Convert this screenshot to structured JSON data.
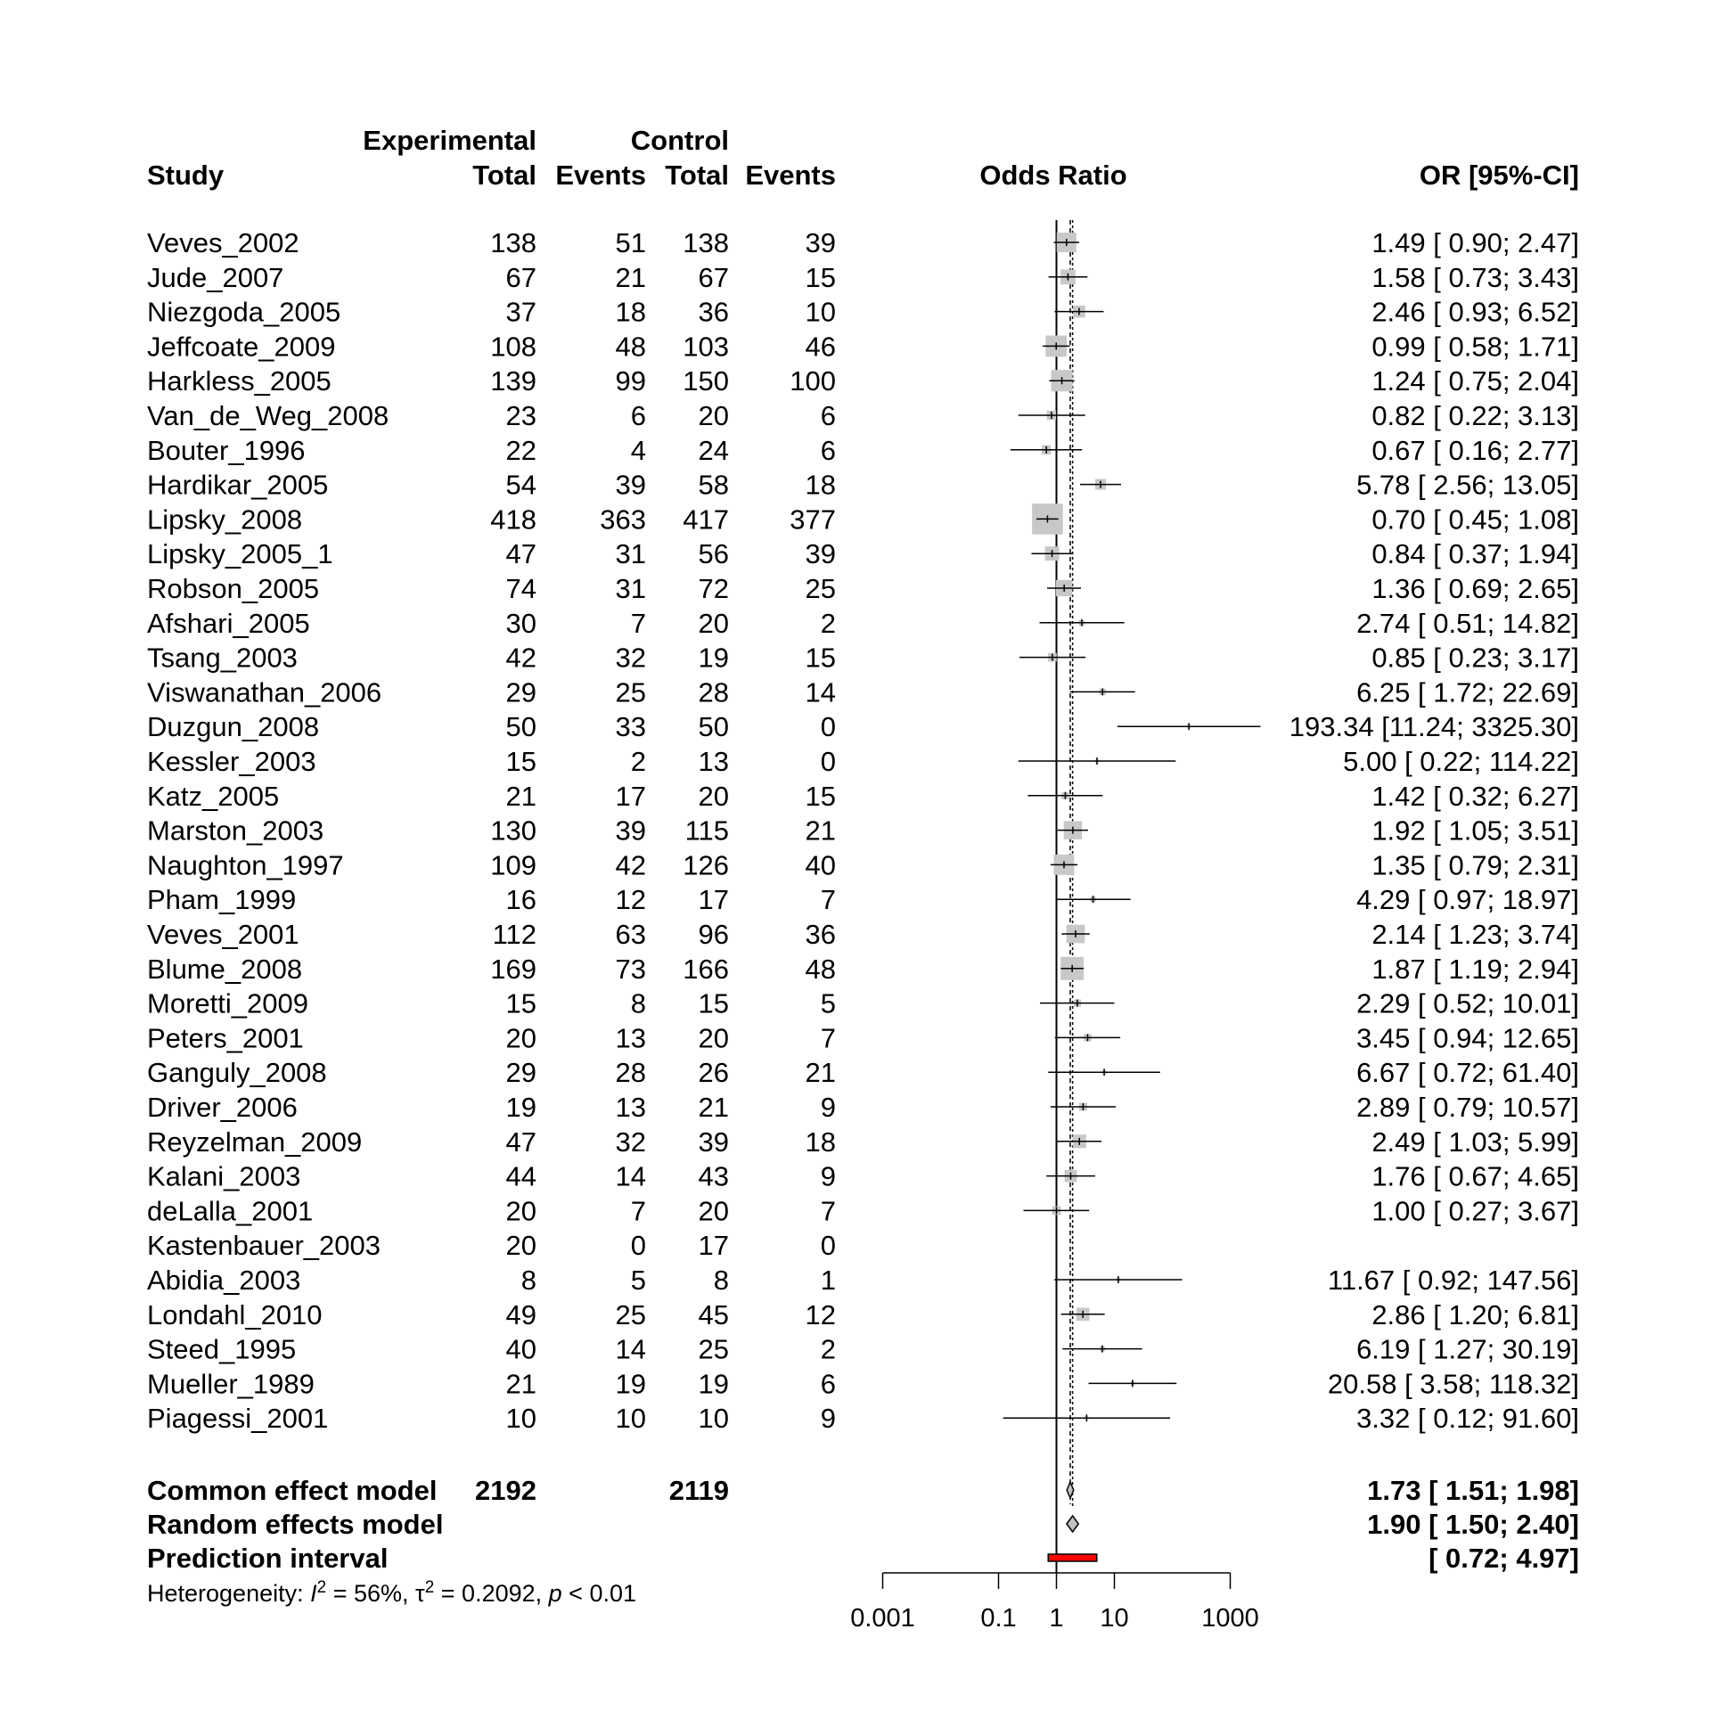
{
  "chart_data": {
    "type": "forest",
    "headers": {
      "experimental": "Experimental",
      "control": "Control",
      "study": "Study",
      "total": "Total",
      "events": "Events",
      "effect": "Odds Ratio",
      "ci": "OR [95%-CI]"
    },
    "x_axis": {
      "scale": "log",
      "ticks": [
        0.001,
        0.1,
        1,
        10,
        1000
      ],
      "tick_labels": [
        "0.001",
        "0.1",
        "1",
        "10",
        "1000"
      ]
    },
    "null_value": 1,
    "studies": [
      {
        "name": "Veves_2002",
        "exp_total": "138",
        "exp_events": "51",
        "ctrl_total": "138",
        "ctrl_events": "39",
        "or": 1.49,
        "lower": 0.9,
        "upper": 2.47,
        "ci_text": "1.49 [ 0.90;    2.47]",
        "weight": 3.6
      },
      {
        "name": "Jude_2007",
        "exp_total": "67",
        "exp_events": "21",
        "ctrl_total": "67",
        "ctrl_events": "15",
        "or": 1.58,
        "lower": 0.73,
        "upper": 3.43,
        "ci_text": "1.58 [ 0.73;    3.43]",
        "weight": 2.1
      },
      {
        "name": "Niezgoda_2005",
        "exp_total": "37",
        "exp_events": "18",
        "ctrl_total": "36",
        "ctrl_events": "10",
        "or": 2.46,
        "lower": 0.93,
        "upper": 6.52,
        "ci_text": "2.46 [ 0.93;    6.52]",
        "weight": 1.4
      },
      {
        "name": "Jeffcoate_2009",
        "exp_total": "108",
        "exp_events": "48",
        "ctrl_total": "103",
        "ctrl_events": "46",
        "or": 0.99,
        "lower": 0.58,
        "upper": 1.71,
        "ci_text": "0.99 [ 0.58;    1.71]",
        "weight": 4.2
      },
      {
        "name": "Harkless_2005",
        "exp_total": "139",
        "exp_events": "99",
        "ctrl_total": "150",
        "ctrl_events": "100",
        "or": 1.24,
        "lower": 0.75,
        "upper": 2.04,
        "ci_text": "1.24 [ 0.75;    2.04]",
        "weight": 4.3
      },
      {
        "name": "Van_de_Weg_2008",
        "exp_total": "23",
        "exp_events": "6",
        "ctrl_total": "20",
        "ctrl_events": "6",
        "or": 0.82,
        "lower": 0.22,
        "upper": 3.13,
        "ci_text": "0.82 [ 0.22;    3.13]",
        "weight": 0.8
      },
      {
        "name": "Bouter_1996",
        "exp_total": "22",
        "exp_events": "4",
        "ctrl_total": "24",
        "ctrl_events": "6",
        "or": 0.67,
        "lower": 0.16,
        "upper": 2.77,
        "ci_text": "0.67 [ 0.16;    2.77]",
        "weight": 0.8
      },
      {
        "name": "Hardikar_2005",
        "exp_total": "54",
        "exp_events": "39",
        "ctrl_total": "58",
        "ctrl_events": "18",
        "or": 5.78,
        "lower": 2.56,
        "upper": 13.05,
        "ci_text": "5.78 [ 2.56;   13.05]",
        "weight": 1.1
      },
      {
        "name": "Lipsky_2008",
        "exp_total": "418",
        "exp_events": "363",
        "ctrl_total": "417",
        "ctrl_events": "377",
        "or": 0.7,
        "lower": 0.45,
        "upper": 1.08,
        "ci_text": "0.70 [ 0.45;    1.08]",
        "weight": 8.9
      },
      {
        "name": "Lipsky_2005_1",
        "exp_total": "47",
        "exp_events": "31",
        "ctrl_total": "56",
        "ctrl_events": "39",
        "or": 0.84,
        "lower": 0.37,
        "upper": 1.94,
        "ci_text": "0.84 [ 0.37;    1.94]",
        "weight": 1.9
      },
      {
        "name": "Robson_2005",
        "exp_total": "74",
        "exp_events": "31",
        "ctrl_total": "72",
        "ctrl_events": "25",
        "or": 1.36,
        "lower": 0.69,
        "upper": 2.65,
        "ci_text": "1.36 [ 0.69;    2.65]",
        "weight": 2.5
      },
      {
        "name": "Afshari_2005",
        "exp_total": "30",
        "exp_events": "7",
        "ctrl_total": "20",
        "ctrl_events": "2",
        "or": 2.74,
        "lower": 0.51,
        "upper": 14.82,
        "ci_text": "2.74 [ 0.51;   14.82]",
        "weight": 0.3
      },
      {
        "name": "Tsang_2003",
        "exp_total": "42",
        "exp_events": "32",
        "ctrl_total": "19",
        "ctrl_events": "15",
        "or": 0.85,
        "lower": 0.23,
        "upper": 3.17,
        "ci_text": "0.85 [ 0.23;    3.17]",
        "weight": 0.7
      },
      {
        "name": "Viswanathan_2006",
        "exp_total": "29",
        "exp_events": "25",
        "ctrl_total": "28",
        "ctrl_events": "14",
        "or": 6.25,
        "lower": 1.72,
        "upper": 22.69,
        "ci_text": "6.25 [ 1.72;   22.69]",
        "weight": 0.4
      },
      {
        "name": "Duzgun_2008",
        "exp_total": "50",
        "exp_events": "33",
        "ctrl_total": "50",
        "ctrl_events": "0",
        "or": 193.34,
        "lower": 11.24,
        "upper": 3325.3,
        "ci_text": "193.34 [11.24; 3325.30]",
        "weight": 0.05
      },
      {
        "name": "Kessler_2003",
        "exp_total": "15",
        "exp_events": "2",
        "ctrl_total": "13",
        "ctrl_events": "0",
        "or": 5.0,
        "lower": 0.22,
        "upper": 114.22,
        "ci_text": "5.00 [ 0.22;  114.22]",
        "weight": 0.1
      },
      {
        "name": "Katz_2005",
        "exp_total": "21",
        "exp_events": "17",
        "ctrl_total": "20",
        "ctrl_events": "15",
        "or": 1.42,
        "lower": 0.32,
        "upper": 6.27,
        "ci_text": "1.42 [ 0.32;    6.27]",
        "weight": 0.5
      },
      {
        "name": "Marston_2003",
        "exp_total": "130",
        "exp_events": "39",
        "ctrl_total": "115",
        "ctrl_events": "21",
        "or": 1.92,
        "lower": 1.05,
        "upper": 3.51,
        "ci_text": "1.92 [ 1.05;    3.51]",
        "weight": 3.1
      },
      {
        "name": "Naughton_1997",
        "exp_total": "109",
        "exp_events": "42",
        "ctrl_total": "126",
        "ctrl_events": "40",
        "or": 1.35,
        "lower": 0.79,
        "upper": 2.31,
        "ci_text": "1.35 [ 0.79;    2.31]",
        "weight": 3.9
      },
      {
        "name": "Pham_1999",
        "exp_total": "16",
        "exp_events": "12",
        "ctrl_total": "17",
        "ctrl_events": "7",
        "or": 4.29,
        "lower": 0.97,
        "upper": 18.97,
        "ci_text": "4.29 [ 0.97;   18.97]",
        "weight": 0.3
      },
      {
        "name": "Veves_2001",
        "exp_total": "112",
        "exp_events": "63",
        "ctrl_total": "96",
        "ctrl_events": "36",
        "or": 2.14,
        "lower": 1.23,
        "upper": 3.74,
        "ci_text": "2.14 [ 1.23;    3.74]",
        "weight": 3.2
      },
      {
        "name": "Blume_2008",
        "exp_total": "169",
        "exp_events": "73",
        "ctrl_total": "166",
        "ctrl_events": "48",
        "or": 1.87,
        "lower": 1.19,
        "upper": 2.94,
        "ci_text": "1.87 [ 1.19;    2.94]",
        "weight": 5.0
      },
      {
        "name": "Moretti_2009",
        "exp_total": "15",
        "exp_events": "8",
        "ctrl_total": "15",
        "ctrl_events": "5",
        "or": 2.29,
        "lower": 0.52,
        "upper": 10.01,
        "ci_text": "2.29 [ 0.52;   10.01]",
        "weight": 0.5
      },
      {
        "name": "Peters_2001",
        "exp_total": "20",
        "exp_events": "13",
        "ctrl_total": "20",
        "ctrl_events": "7",
        "or": 3.45,
        "lower": 0.94,
        "upper": 12.65,
        "ci_text": "3.45 [ 0.94;   12.65]",
        "weight": 0.5
      },
      {
        "name": "Ganguly_2008",
        "exp_total": "29",
        "exp_events": "28",
        "ctrl_total": "26",
        "ctrl_events": "21",
        "or": 6.67,
        "lower": 0.72,
        "upper": 61.4,
        "ci_text": "6.67 [ 0.72;   61.40]",
        "weight": 0.15
      },
      {
        "name": "Driver_2006",
        "exp_total": "19",
        "exp_events": "13",
        "ctrl_total": "21",
        "ctrl_events": "9",
        "or": 2.89,
        "lower": 0.79,
        "upper": 10.57,
        "ci_text": "2.89 [ 0.79;   10.57]",
        "weight": 0.6
      },
      {
        "name": "Reyzelman_2009",
        "exp_total": "47",
        "exp_events": "32",
        "ctrl_total": "39",
        "ctrl_events": "18",
        "or": 2.49,
        "lower": 1.03,
        "upper": 5.99,
        "ci_text": "2.49 [ 1.03;    5.99]",
        "weight": 1.7
      },
      {
        "name": "Kalani_2003",
        "exp_total": "44",
        "exp_events": "14",
        "ctrl_total": "43",
        "ctrl_events": "9",
        "or": 1.76,
        "lower": 0.67,
        "upper": 4.65,
        "ci_text": "1.76 [ 0.67;    4.65]",
        "weight": 1.4
      },
      {
        "name": "deLalla_2001",
        "exp_total": "20",
        "exp_events": "7",
        "ctrl_total": "20",
        "ctrl_events": "7",
        "or": 1.0,
        "lower": 0.27,
        "upper": 3.67,
        "ci_text": "1.00 [ 0.27;    3.67]",
        "weight": 0.7
      },
      {
        "name": "Kastenbauer_2003",
        "exp_total": "20",
        "exp_events": "0",
        "ctrl_total": "17",
        "ctrl_events": "0",
        "or": null,
        "lower": null,
        "upper": null,
        "ci_text": "",
        "weight": 0
      },
      {
        "name": "Abidia_2003",
        "exp_total": "8",
        "exp_events": "5",
        "ctrl_total": "8",
        "ctrl_events": "1",
        "or": 11.67,
        "lower": 0.92,
        "upper": 147.56,
        "ci_text": "11.67 [ 0.92;  147.56]",
        "weight": 0.1
      },
      {
        "name": "Londahl_2010",
        "exp_total": "49",
        "exp_events": "25",
        "ctrl_total": "45",
        "ctrl_events": "12",
        "or": 2.86,
        "lower": 1.2,
        "upper": 6.81,
        "ci_text": "2.86 [ 1.20;    6.81]",
        "weight": 1.6
      },
      {
        "name": "Steed_1995",
        "exp_total": "40",
        "exp_events": "14",
        "ctrl_total": "25",
        "ctrl_events": "2",
        "or": 6.19,
        "lower": 1.27,
        "upper": 30.19,
        "ci_text": "6.19 [ 1.27;   30.19]",
        "weight": 0.25
      },
      {
        "name": "Mueller_1989",
        "exp_total": "21",
        "exp_events": "19",
        "ctrl_total": "19",
        "ctrl_events": "6",
        "or": 20.58,
        "lower": 3.58,
        "upper": 118.32,
        "ci_text": "20.58 [ 3.58;  118.32]",
        "weight": 0.15
      },
      {
        "name": "Piagessi_2001",
        "exp_total": "10",
        "exp_events": "10",
        "ctrl_total": "10",
        "ctrl_events": "9",
        "or": 3.32,
        "lower": 0.12,
        "upper": 91.6,
        "ci_text": "3.32 [ 0.12;   91.60]",
        "weight": 0.1
      }
    ],
    "common_effect": {
      "label": "Common effect model",
      "exp_total": "2192",
      "ctrl_total": "2119",
      "or": 1.73,
      "lower": 1.51,
      "upper": 1.98,
      "ci_text": "1.73 [ 1.51;    1.98]"
    },
    "random_effects": {
      "label": "Random effects model",
      "or": 1.9,
      "lower": 1.5,
      "upper": 2.4,
      "ci_text": "1.90 [ 1.50;    2.40]"
    },
    "prediction_interval": {
      "label": "Prediction interval",
      "lower": 0.72,
      "upper": 4.97,
      "ci_text": "[ 0.72;    4.97]"
    },
    "heterogeneity": {
      "prefix": "Heterogeneity: ",
      "i_symbol": "I",
      "exponent": "2",
      "i2_text": " = 56%, ",
      "tau_symbol": "τ",
      "tau2_text": " = 0.2092, ",
      "p_symbol": "p",
      "p_text": " < 0.01"
    },
    "colors": {
      "square": "#c8c8c8",
      "line": "#000000",
      "diamond_fill": "#c0c0c0",
      "prediction_fill": "#ff0000",
      "reference_dashed": "#000000"
    }
  }
}
